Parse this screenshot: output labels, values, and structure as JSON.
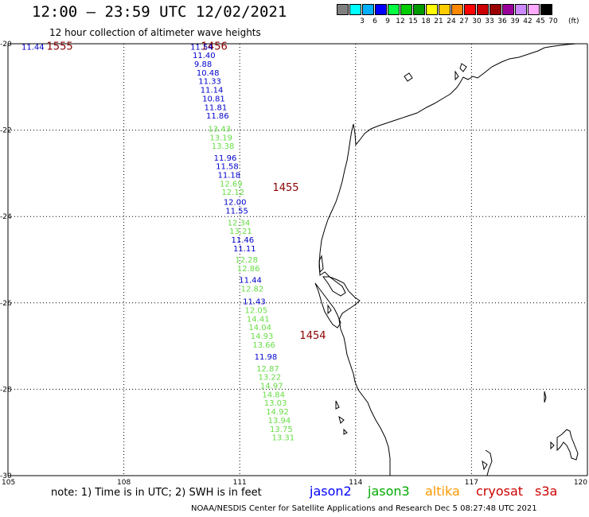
{
  "header": {
    "title": "12:00 – 23:59 UTC 12/02/2021",
    "subtitle": "12 hour collection of altimeter wave heights"
  },
  "legend": {
    "unit": "(ft)",
    "items": [
      {
        "label": "",
        "color": "#808080"
      },
      {
        "label": "3",
        "color": "#00ffff"
      },
      {
        "label": "6",
        "color": "#00b0ff"
      },
      {
        "label": "9",
        "color": "#0000ff"
      },
      {
        "label": "12",
        "color": "#00ff40"
      },
      {
        "label": "15",
        "color": "#00cc00"
      },
      {
        "label": "18",
        "color": "#009900"
      },
      {
        "label": "21",
        "color": "#ffff00"
      },
      {
        "label": "24",
        "color": "#ffcc00"
      },
      {
        "label": "27",
        "color": "#ff8800"
      },
      {
        "label": "30",
        "color": "#ff0000"
      },
      {
        "label": "33",
        "color": "#cc0000"
      },
      {
        "label": "36",
        "color": "#990000"
      },
      {
        "label": "39",
        "color": "#990099"
      },
      {
        "label": "42",
        "color": "#cc88ff"
      },
      {
        "label": "45",
        "color": "#ffaaff"
      },
      {
        "label": "70",
        "color": "#000000"
      }
    ]
  },
  "footer": {
    "note": "note:  1) Time is in UTC;  2) SWH is in feet",
    "satellites": [
      {
        "name": "jason2",
        "color": "#0000ff"
      },
      {
        "name": "jason3",
        "color": "#00aa00"
      },
      {
        "name": "altika",
        "color": "#ff9900"
      },
      {
        "name": "cryosat",
        "color": "#cc0000"
      },
      {
        "name": "s3a",
        "color": "#cc0000"
      }
    ],
    "credit": "NOAA/NESDIS Center for Satellite Applications and Research    Dec  5 08:27:48 UTC 2021"
  },
  "chart_data": {
    "type": "scatter",
    "x_ticks": [
      "105",
      "108",
      "111",
      "114",
      "117",
      "120"
    ],
    "y_ticks": [
      "-20",
      "-22",
      "-24",
      "-26",
      "-28",
      "-30"
    ],
    "xlim": [
      105,
      120
    ],
    "ylim": [
      -30,
      -20
    ],
    "grid": true,
    "time_labels": [
      {
        "text": "1555",
        "lon": 106.0,
        "lat": -20.06
      },
      {
        "text": "1456",
        "lon": 110.0,
        "lat": -20.06
      },
      {
        "text": "1455",
        "lon": 111.85,
        "lat": -23.33
      },
      {
        "text": "1454",
        "lon": 112.55,
        "lat": -26.76
      }
    ],
    "edge_value": {
      "text": "11.44",
      "lon": 105.35,
      "lat": -20.06,
      "sat": "jason2"
    },
    "observations": [
      {
        "v": "11.54",
        "lon": 109.72,
        "lat": -20.06,
        "sat": "jason2"
      },
      {
        "v": "11.40",
        "lon": 109.78,
        "lat": -20.26,
        "sat": "jason2"
      },
      {
        "v": "9.88",
        "lon": 109.82,
        "lat": -20.46,
        "sat": "jason2"
      },
      {
        "v": "10.48",
        "lon": 109.88,
        "lat": -20.66,
        "sat": "jason2"
      },
      {
        "v": "11.33",
        "lon": 109.93,
        "lat": -20.86,
        "sat": "jason2"
      },
      {
        "v": "11.14",
        "lon": 109.98,
        "lat": -21.06,
        "sat": "jason2"
      },
      {
        "v": "10.81",
        "lon": 110.03,
        "lat": -21.26,
        "sat": "jason2"
      },
      {
        "v": "11.81",
        "lon": 110.08,
        "lat": -21.46,
        "sat": "jason2"
      },
      {
        "v": "11.86",
        "lon": 110.13,
        "lat": -21.66,
        "sat": "jason2"
      },
      {
        "v": "13.43",
        "lon": 110.18,
        "lat": -21.96,
        "sat": "jason3"
      },
      {
        "v": "13.19",
        "lon": 110.22,
        "lat": -22.16,
        "sat": "jason3"
      },
      {
        "v": "13.38",
        "lon": 110.27,
        "lat": -22.36,
        "sat": "jason3"
      },
      {
        "v": "11.96",
        "lon": 110.33,
        "lat": -22.63,
        "sat": "jason2"
      },
      {
        "v": "11.58",
        "lon": 110.38,
        "lat": -22.83,
        "sat": "jason2"
      },
      {
        "v": "11.18",
        "lon": 110.43,
        "lat": -23.03,
        "sat": "jason2"
      },
      {
        "v": "12.69",
        "lon": 110.48,
        "lat": -23.23,
        "sat": "jason3"
      },
      {
        "v": "12.12",
        "lon": 110.53,
        "lat": -23.43,
        "sat": "jason3"
      },
      {
        "v": "12.00",
        "lon": 110.58,
        "lat": -23.66,
        "sat": "jason2"
      },
      {
        "v": "11.55",
        "lon": 110.63,
        "lat": -23.86,
        "sat": "jason2"
      },
      {
        "v": "12.34",
        "lon": 110.68,
        "lat": -24.13,
        "sat": "jason3"
      },
      {
        "v": "13.21",
        "lon": 110.73,
        "lat": -24.33,
        "sat": "jason3"
      },
      {
        "v": "11.46",
        "lon": 110.78,
        "lat": -24.53,
        "sat": "jason2"
      },
      {
        "v": "11.11",
        "lon": 110.83,
        "lat": -24.73,
        "sat": "jason2"
      },
      {
        "v": "12.28",
        "lon": 110.88,
        "lat": -24.99,
        "sat": "jason3"
      },
      {
        "v": "12.86",
        "lon": 110.93,
        "lat": -25.19,
        "sat": "jason3"
      },
      {
        "v": "11.44",
        "lon": 110.98,
        "lat": -25.46,
        "sat": "jason2"
      },
      {
        "v": "12.82",
        "lon": 111.03,
        "lat": -25.66,
        "sat": "jason3"
      },
      {
        "v": "11.43",
        "lon": 111.08,
        "lat": -25.96,
        "sat": "jason2"
      },
      {
        "v": "12.05",
        "lon": 111.13,
        "lat": -26.16,
        "sat": "jason3"
      },
      {
        "v": "14.41",
        "lon": 111.18,
        "lat": -26.36,
        "sat": "jason3"
      },
      {
        "v": "14.04",
        "lon": 111.23,
        "lat": -26.56,
        "sat": "jason3"
      },
      {
        "v": "14.93",
        "lon": 111.28,
        "lat": -26.76,
        "sat": "jason3"
      },
      {
        "v": "13.66",
        "lon": 111.33,
        "lat": -26.96,
        "sat": "jason3"
      },
      {
        "v": "11.98",
        "lon": 111.38,
        "lat": -27.24,
        "sat": "jason2"
      },
      {
        "v": "12.87",
        "lon": 111.43,
        "lat": -27.51,
        "sat": "jason3"
      },
      {
        "v": "13.22",
        "lon": 111.48,
        "lat": -27.71,
        "sat": "jason3"
      },
      {
        "v": "14.97",
        "lon": 111.53,
        "lat": -27.91,
        "sat": "jason3"
      },
      {
        "v": "14.84",
        "lon": 111.58,
        "lat": -28.11,
        "sat": "jason3"
      },
      {
        "v": "13.03",
        "lon": 111.63,
        "lat": -28.31,
        "sat": "jason3"
      },
      {
        "v": "14.92",
        "lon": 111.68,
        "lat": -28.51,
        "sat": "jason3"
      },
      {
        "v": "13.94",
        "lon": 111.73,
        "lat": -28.71,
        "sat": "jason3"
      },
      {
        "v": "13.75",
        "lon": 111.78,
        "lat": -28.91,
        "sat": "jason3"
      },
      {
        "v": "13.31",
        "lon": 111.83,
        "lat": -29.11,
        "sat": "jason3"
      }
    ]
  }
}
